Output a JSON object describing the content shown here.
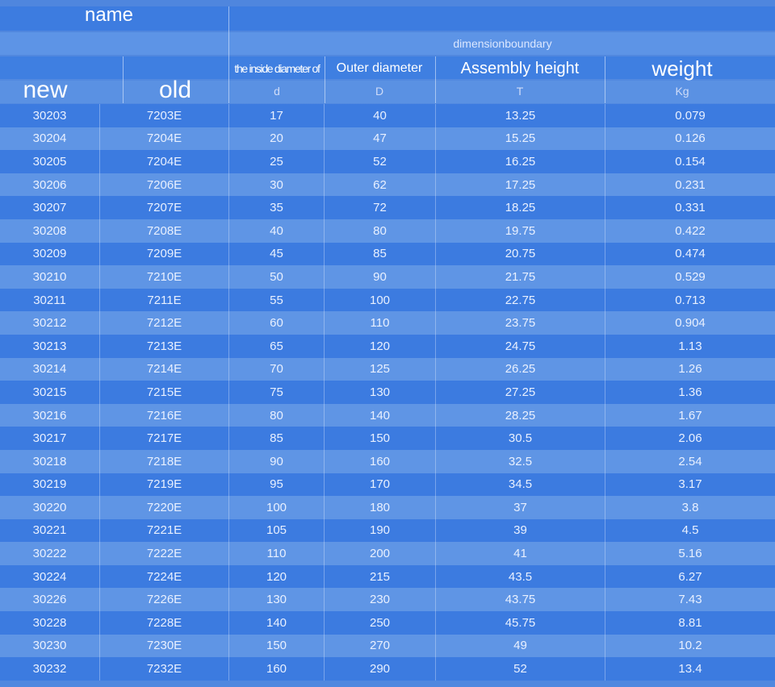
{
  "header": {
    "name": "name",
    "dimension_group": "dimensionboundary",
    "inside_diameter": "the inside diameter of",
    "outer_diameter": "Outer diameter",
    "assembly_height": "Assembly height",
    "weight": "weight",
    "new": "new",
    "old": "old",
    "d": "d",
    "D": "D",
    "T": "T",
    "kg": "Kg"
  },
  "rows": [
    {
      "new": "30203",
      "old": "7203E",
      "d": "17",
      "D": "40",
      "T": "13.25",
      "kg": "0.079"
    },
    {
      "new": "30204",
      "old": "7204E",
      "d": "20",
      "D": "47",
      "T": "15.25",
      "kg": "0.126"
    },
    {
      "new": "30205",
      "old": "7204E",
      "d": "25",
      "D": "52",
      "T": "16.25",
      "kg": "0.154"
    },
    {
      "new": "30206",
      "old": "7206E",
      "d": "30",
      "D": "62",
      "T": "17.25",
      "kg": "0.231"
    },
    {
      "new": "30207",
      "old": "7207E",
      "d": "35",
      "D": "72",
      "T": "18.25",
      "kg": "0.331"
    },
    {
      "new": "30208",
      "old": "7208E",
      "d": "40",
      "D": "80",
      "T": "19.75",
      "kg": "0.422"
    },
    {
      "new": "30209",
      "old": "7209E",
      "d": "45",
      "D": "85",
      "T": "20.75",
      "kg": "0.474"
    },
    {
      "new": "30210",
      "old": "7210E",
      "d": "50",
      "D": "90",
      "T": "21.75",
      "kg": "0.529"
    },
    {
      "new": "30211",
      "old": "7211E",
      "d": "55",
      "D": "100",
      "T": "22.75",
      "kg": "0.713"
    },
    {
      "new": "30212",
      "old": "7212E",
      "d": "60",
      "D": "110",
      "T": "23.75",
      "kg": "0.904"
    },
    {
      "new": "30213",
      "old": "7213E",
      "d": "65",
      "D": "120",
      "T": "24.75",
      "kg": "1.13"
    },
    {
      "new": "30214",
      "old": "7214E",
      "d": "70",
      "D": "125",
      "T": "26.25",
      "kg": "1.26"
    },
    {
      "new": "30215",
      "old": "7215E",
      "d": "75",
      "D": "130",
      "T": "27.25",
      "kg": "1.36"
    },
    {
      "new": "30216",
      "old": "7216E",
      "d": "80",
      "D": "140",
      "T": "28.25",
      "kg": "1.67"
    },
    {
      "new": "30217",
      "old": "7217E",
      "d": "85",
      "D": "150",
      "T": "30.5",
      "kg": "2.06"
    },
    {
      "new": "30218",
      "old": "7218E",
      "d": "90",
      "D": "160",
      "T": "32.5",
      "kg": "2.54"
    },
    {
      "new": "30219",
      "old": "7219E",
      "d": "95",
      "D": "170",
      "T": "34.5",
      "kg": "3.17"
    },
    {
      "new": "30220",
      "old": "7220E",
      "d": "100",
      "D": "180",
      "T": "37",
      "kg": "3.8"
    },
    {
      "new": "30221",
      "old": "7221E",
      "d": "105",
      "D": "190",
      "T": "39",
      "kg": "4.5"
    },
    {
      "new": "30222",
      "old": "7222E",
      "d": "110",
      "D": "200",
      "T": "41",
      "kg": "5.16"
    },
    {
      "new": "30224",
      "old": "7224E",
      "d": "120",
      "D": "215",
      "T": "43.5",
      "kg": "6.27"
    },
    {
      "new": "30226",
      "old": "7226E",
      "d": "130",
      "D": "230",
      "T": "43.75",
      "kg": "7.43"
    },
    {
      "new": "30228",
      "old": "7228E",
      "d": "140",
      "D": "250",
      "T": "45.75",
      "kg": "8.81"
    },
    {
      "new": "30230",
      "old": "7230E",
      "d": "150",
      "D": "270",
      "T": "49",
      "kg": "10.2"
    },
    {
      "new": "30232",
      "old": "7232E",
      "d": "160",
      "D": "290",
      "T": "52",
      "kg": "13.4"
    }
  ]
}
